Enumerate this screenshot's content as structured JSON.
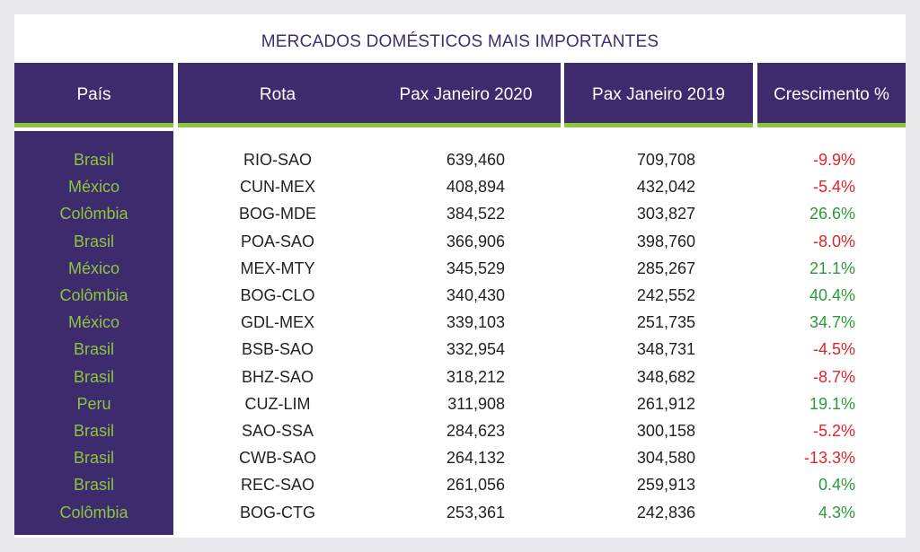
{
  "title": "MERCADOS DOMÉSTICOS MAIS IMPORTANTES",
  "colors": {
    "header_bg": "#3d2b6e",
    "accent_green": "#8cc63f",
    "negative": "#e0242b",
    "positive": "#2c9a3a",
    "title": "#3f2d73"
  },
  "headers": [
    "País",
    "Rota",
    "Pax Janeiro 2020",
    "Pax Janeiro 2019",
    "Crescimento %"
  ],
  "rows": [
    {
      "pais": "Brasil",
      "rota": "RIO-SAO",
      "pax2020": "639,460",
      "pax2019": "709,708",
      "crescimento": "-9.9%",
      "trend": "neg"
    },
    {
      "pais": "México",
      "rota": "CUN-MEX",
      "pax2020": "408,894",
      "pax2019": "432,042",
      "crescimento": "-5.4%",
      "trend": "neg"
    },
    {
      "pais": "Colômbia",
      "rota": "BOG-MDE",
      "pax2020": "384,522",
      "pax2019": "303,827",
      "crescimento": "26.6%",
      "trend": "pos"
    },
    {
      "pais": "Brasil",
      "rota": "POA-SAO",
      "pax2020": "366,906",
      "pax2019": "398,760",
      "crescimento": "-8.0%",
      "trend": "neg"
    },
    {
      "pais": "México",
      "rota": "MEX-MTY",
      "pax2020": "345,529",
      "pax2019": "285,267",
      "crescimento": "21.1%",
      "trend": "pos"
    },
    {
      "pais": "Colômbia",
      "rota": "BOG-CLO",
      "pax2020": "340,430",
      "pax2019": "242,552",
      "crescimento": "40.4%",
      "trend": "pos"
    },
    {
      "pais": "México",
      "rota": "GDL-MEX",
      "pax2020": "339,103",
      "pax2019": "251,735",
      "crescimento": "34.7%",
      "trend": "pos"
    },
    {
      "pais": "Brasil",
      "rota": "BSB-SAO",
      "pax2020": "332,954",
      "pax2019": "348,731",
      "crescimento": "-4.5%",
      "trend": "neg"
    },
    {
      "pais": "Brasil",
      "rota": "BHZ-SAO",
      "pax2020": "318,212",
      "pax2019": "348,682",
      "crescimento": "-8.7%",
      "trend": "neg"
    },
    {
      "pais": "Peru",
      "rota": "CUZ-LIM",
      "pax2020": "311,908",
      "pax2019": "261,912",
      "crescimento": "19.1%",
      "trend": "pos"
    },
    {
      "pais": "Brasil",
      "rota": "SAO-SSA",
      "pax2020": "284,623",
      "pax2019": "300,158",
      "crescimento": "-5.2%",
      "trend": "neg"
    },
    {
      "pais": "Brasil",
      "rota": "CWB-SAO",
      "pax2020": "264,132",
      "pax2019": "304,580",
      "crescimento": "-13.3%",
      "trend": "neg"
    },
    {
      "pais": "Brasil",
      "rota": "REC-SAO",
      "pax2020": "261,056",
      "pax2019": "259,913",
      "crescimento": "0.4%",
      "trend": "pos"
    },
    {
      "pais": "Colômbia",
      "rota": "BOG-CTG",
      "pax2020": "253,361",
      "pax2019": "242,836",
      "crescimento": "4.3%",
      "trend": "pos"
    }
  ]
}
